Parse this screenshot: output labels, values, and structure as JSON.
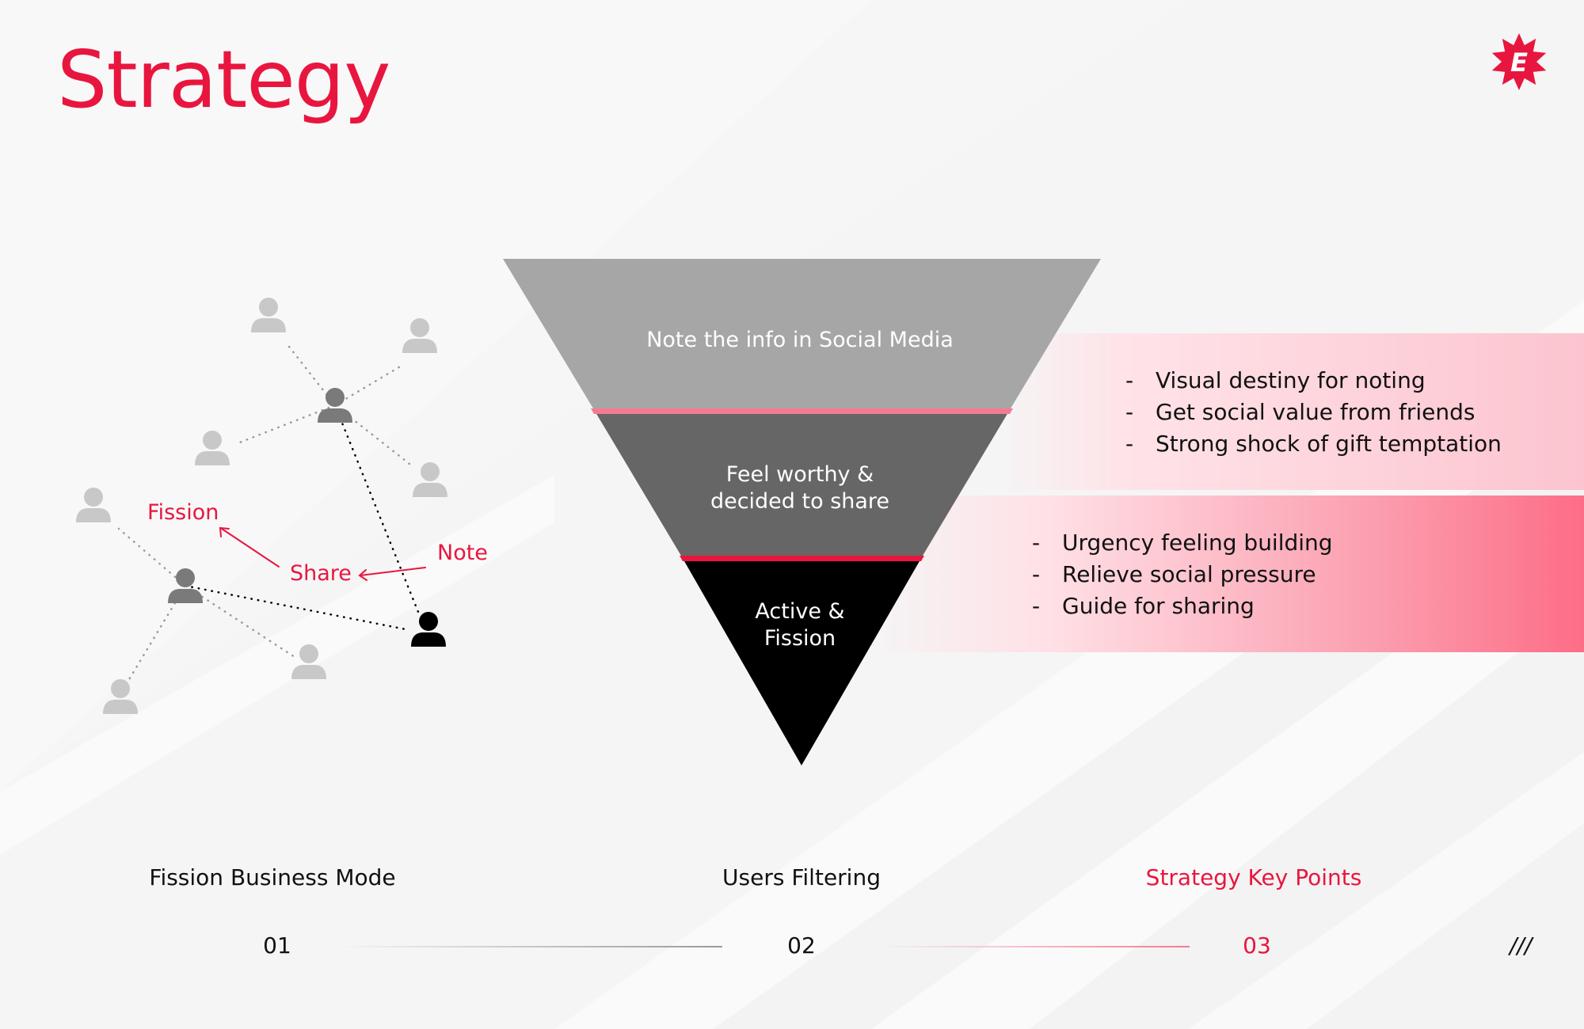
{
  "page": {
    "title": "Strategy",
    "accent_color": "#e8163f",
    "logo": {
      "icon": "star-burst-logo-icon",
      "letter": "E",
      "color": "#e8163f"
    }
  },
  "network": {
    "labels": {
      "fission": "Fission",
      "share": "Share",
      "note": "Note"
    },
    "icon": "user-icon",
    "colors": {
      "light": "#c8c8c8",
      "mid": "#7a7a7a",
      "dark": "#000000",
      "label": "#e8163f"
    }
  },
  "funnel": {
    "levels": [
      {
        "text": "Note the info in Social Media",
        "color": "#a6a6a6"
      },
      {
        "text": "Feel worthy &\ndecided to share",
        "color": "#666666"
      },
      {
        "text": "Active &\nFission",
        "color": "#000000"
      }
    ],
    "divider_colors": [
      "#f47a92",
      "#e8163f"
    ]
  },
  "points": {
    "group1": [
      "Visual destiny for noting",
      "Get social value from friends",
      "Strong shock of gift temptation"
    ],
    "group2": [
      "Urgency feeling building",
      "Relieve social pressure",
      "Guide for sharing"
    ],
    "bullet": "-"
  },
  "steps": [
    {
      "title": "Fission Business Mode",
      "number": "01",
      "active": false
    },
    {
      "title": "Users Filtering",
      "number": "02",
      "active": false
    },
    {
      "title": "Strategy Key Points",
      "number": "03",
      "active": true
    }
  ],
  "menu_mark": "///"
}
